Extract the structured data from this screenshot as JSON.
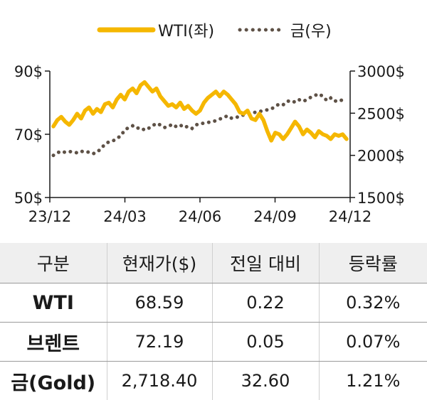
{
  "chart_data": {
    "type": "line",
    "legend": {
      "placement": "top-center"
    },
    "x_ticks": [
      "23/12",
      "24/03",
      "24/06",
      "24/09",
      "24/12"
    ],
    "y_left_ticks": [
      "90$",
      "70$",
      "50$"
    ],
    "y_right_ticks": [
      "3000$",
      "2500$",
      "2000$",
      "1500$"
    ],
    "ylim_left": [
      50,
      90
    ],
    "ylim_right": [
      1500,
      3000
    ],
    "grid": false,
    "colors": {
      "wti": "#f5b700",
      "gold": "#5e5146"
    },
    "series": [
      {
        "name": "WTI(좌)",
        "axis": "left",
        "style": "solid",
        "values": [
          72.5,
          74.5,
          75.5,
          74.0,
          73.0,
          74.5,
          76.5,
          75.0,
          77.5,
          78.5,
          76.5,
          78.0,
          77.0,
          79.5,
          80.0,
          78.5,
          81.0,
          82.5,
          81.0,
          83.5,
          84.5,
          83.0,
          85.5,
          86.5,
          85.0,
          83.5,
          84.5,
          82.0,
          80.5,
          79.0,
          79.5,
          78.5,
          80.0,
          78.0,
          79.0,
          77.5,
          76.5,
          77.5,
          80.0,
          81.5,
          82.5,
          83.5,
          82.0,
          83.5,
          82.5,
          81.0,
          79.5,
          77.0,
          76.5,
          77.5,
          75.0,
          74.5,
          76.5,
          74.5,
          71.0,
          68.0,
          70.5,
          70.0,
          68.5,
          70.0,
          72.0,
          74.0,
          72.5,
          70.0,
          71.5,
          70.5,
          69.0,
          71.0,
          70.0,
          69.5,
          68.5,
          70.0,
          69.5,
          70.0,
          68.5
        ]
      },
      {
        "name": "금(우)",
        "axis": "right",
        "style": "dotted",
        "values": [
          2000,
          2030,
          2050,
          2035,
          2045,
          2040,
          2030,
          2050,
          2035,
          2040,
          2020,
          2035,
          2080,
          2130,
          2160,
          2170,
          2200,
          2230,
          2300,
          2330,
          2350,
          2320,
          2330,
          2300,
          2320,
          2350,
          2380,
          2360,
          2330,
          2340,
          2370,
          2340,
          2360,
          2330,
          2345,
          2320,
          2360,
          2380,
          2380,
          2390,
          2400,
          2410,
          2430,
          2450,
          2470,
          2440,
          2450,
          2460,
          2480,
          2500,
          2505,
          2510,
          2520,
          2530,
          2540,
          2550,
          2580,
          2610,
          2600,
          2640,
          2650,
          2630,
          2660,
          2640,
          2660,
          2690,
          2710,
          2730,
          2700,
          2650,
          2680,
          2640,
          2660,
          2650,
          2680
        ]
      }
    ]
  },
  "table": {
    "headers": [
      "구분",
      "현재가($)",
      "전일 대비",
      "등락률"
    ],
    "rows": [
      {
        "label": "WTI",
        "price": "68.59",
        "change": "0.22",
        "rate": "0.32%"
      },
      {
        "label": "브렌트",
        "price": "72.19",
        "change": "0.05",
        "rate": "0.07%"
      },
      {
        "label": "금(Gold)",
        "price": "2,718.40",
        "change": "32.60",
        "rate": "1.21%"
      }
    ]
  }
}
